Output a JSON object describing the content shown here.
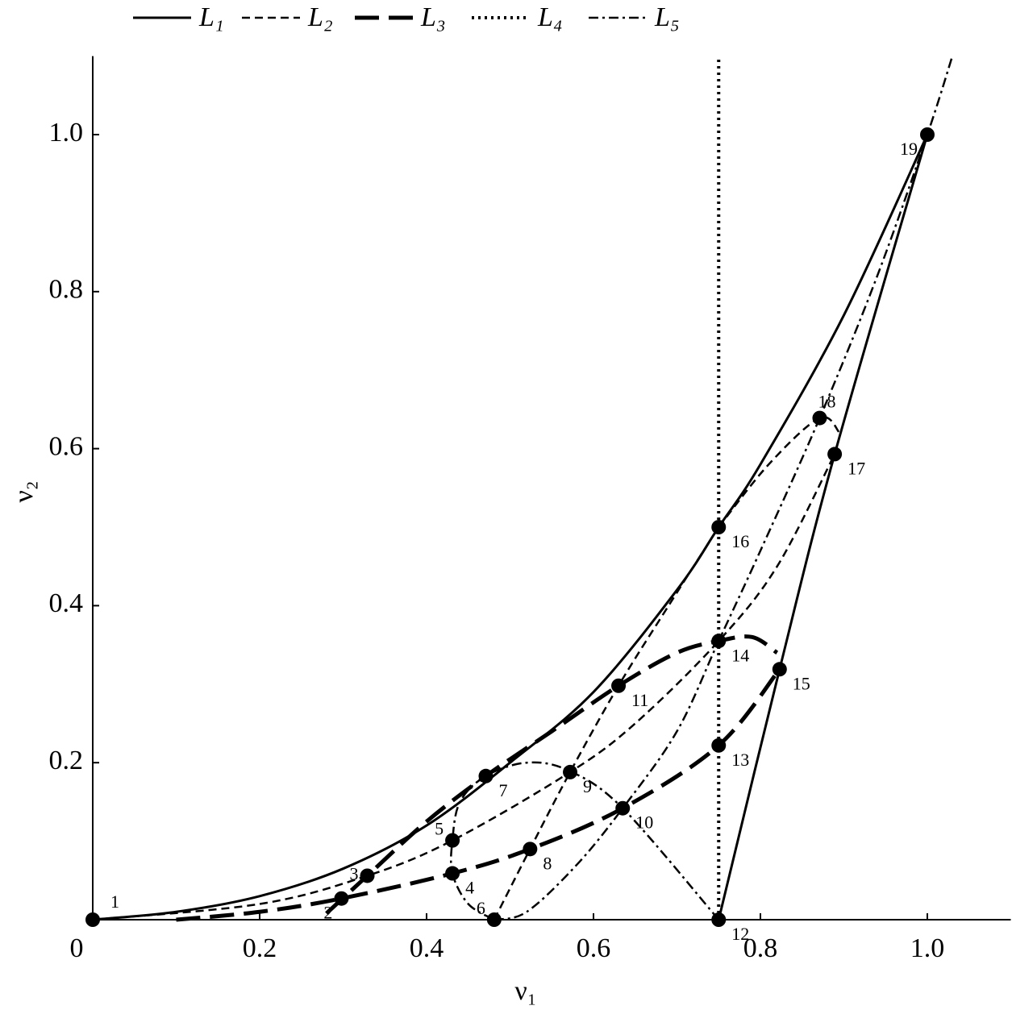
{
  "chart_data": {
    "type": "line",
    "xlabel": "ν₁",
    "ylabel": "ν₂",
    "xlim": [
      0,
      1.1
    ],
    "ylim": [
      0,
      1.1
    ],
    "xticks": [
      0,
      0.2,
      0.4,
      0.6,
      0.8,
      {
        "value": 1,
        "label": "1.0"
      }
    ],
    "yticks": [
      0.2,
      0.4,
      0.6,
      0.8,
      {
        "value": 1,
        "label": "1.0"
      }
    ],
    "series": [
      {
        "name": "L₁",
        "color": "#000000",
        "linestyle": "solid",
        "x": [
          0,
          0.1,
          0.2,
          0.3,
          0.4,
          0.5,
          0.6,
          0.7,
          0.75,
          0.8,
          0.9,
          1.0,
          null,
          0.75,
          0.823,
          0.889,
          1.0
        ],
        "y": [
          0,
          0.01,
          0.03,
          0.065,
          0.12,
          0.2,
          0.29,
          0.42,
          0.5,
          0.58,
          0.77,
          1.0,
          null,
          0,
          0.319,
          0.593,
          1.0
        ]
      },
      {
        "name": "L₂",
        "color": "#000000",
        "linestyle": "dashed",
        "x": [
          0,
          0.2,
          0.329,
          0.431,
          0.572,
          0.65,
          0.75,
          0.82,
          0.889,
          null,
          0.481,
          0.524,
          0.572,
          0.63,
          0.69,
          0.75,
          null,
          0.75,
          0.81,
          0.871,
          0.895
        ],
        "y": [
          0,
          0.02,
          0.056,
          0.101,
          0.188,
          0.25,
          0.355,
          0.45,
          0.593,
          null,
          0,
          0.09,
          0.188,
          0.298,
          0.4,
          0.5,
          null,
          0.5,
          0.58,
          0.639,
          0.62
        ]
      },
      {
        "name": "L₃",
        "color": "#000000",
        "linestyle": "longdash",
        "x": [
          0.1,
          0.2,
          0.298,
          0.431,
          0.524,
          0.635,
          0.75,
          0.823,
          null,
          0.28,
          0.329,
          0.4,
          0.471,
          0.55,
          0.63,
          0.7,
          0.75,
          0.79,
          0.82
        ],
        "y": [
          0,
          0.01,
          0.027,
          0.059,
          0.09,
          0.142,
          0.222,
          0.319,
          null,
          0.008,
          0.056,
          0.125,
          0.183,
          0.24,
          0.298,
          0.34,
          0.355,
          0.36,
          0.34
        ]
      },
      {
        "name": "L₄",
        "color": "#000000",
        "linestyle": "dotted",
        "x": [
          0.75,
          0.75
        ],
        "y": [
          0,
          1.1
        ]
      },
      {
        "name": "L₅",
        "color": "#000000",
        "linestyle": "dashdot",
        "x": [
          0.75,
          0.635,
          0.57,
          0.52,
          0.471,
          0.44,
          0.431,
          0.431,
          0.45,
          0.481,
          null,
          0.481,
          0.52,
          0.58,
          0.635,
          0.7,
          0.75,
          0.8,
          0.871,
          0.94,
          1.0,
          1.03
        ],
        "y": [
          0,
          0.142,
          0.19,
          0.2,
          0.183,
          0.15,
          0.101,
          0.059,
          0.02,
          0,
          null,
          0,
          0.01,
          0.07,
          0.142,
          0.24,
          0.355,
          0.47,
          0.639,
          0.82,
          1.0,
          1.1
        ]
      }
    ],
    "points": [
      {
        "label": "1",
        "x": 0,
        "y": 0
      },
      {
        "label": "2",
        "x": 0.298,
        "y": 0.027
      },
      {
        "label": "3",
        "x": 0.329,
        "y": 0.056
      },
      {
        "label": "4",
        "x": 0.431,
        "y": 0.059
      },
      {
        "label": "5",
        "x": 0.431,
        "y": 0.101
      },
      {
        "label": "6",
        "x": 0.481,
        "y": 0
      },
      {
        "label": "7",
        "x": 0.471,
        "y": 0.183
      },
      {
        "label": "8",
        "x": 0.524,
        "y": 0.09
      },
      {
        "label": "9",
        "x": 0.572,
        "y": 0.188
      },
      {
        "label": "10",
        "x": 0.635,
        "y": 0.142
      },
      {
        "label": "11",
        "x": 0.63,
        "y": 0.298
      },
      {
        "label": "12",
        "x": 0.75,
        "y": 0
      },
      {
        "label": "13",
        "x": 0.75,
        "y": 0.222
      },
      {
        "label": "14",
        "x": 0.75,
        "y": 0.355
      },
      {
        "label": "15",
        "x": 0.823,
        "y": 0.319
      },
      {
        "label": "16",
        "x": 0.75,
        "y": 0.5
      },
      {
        "label": "17",
        "x": 0.889,
        "y": 0.593
      },
      {
        "label": "18",
        "x": 0.871,
        "y": 0.639
      },
      {
        "label": "19",
        "x": 1.0,
        "y": 1.0
      }
    ]
  }
}
